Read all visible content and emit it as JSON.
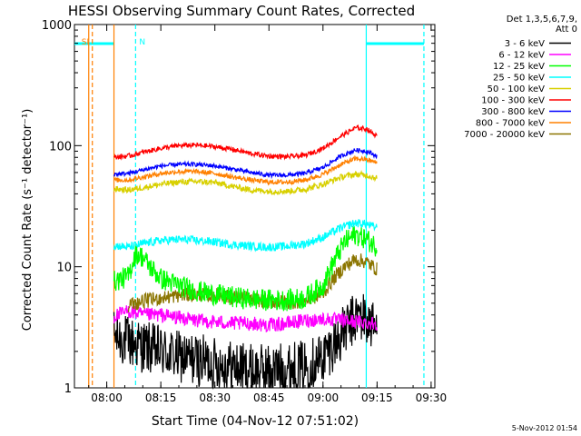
{
  "chart_data": {
    "type": "line",
    "title": "HESSI Observing Summary Count Rates, Corrected",
    "xlabel": "Start Time (04-Nov-12 07:51:02)",
    "ylabel": "Corrected Count Rate (s⁻¹ detector⁻¹)",
    "y_scale": "log",
    "ylim": [
      1,
      1000
    ],
    "xlim": [
      "07:51:02",
      "09:31:02"
    ],
    "x_ticks": [
      "08:00",
      "08:15",
      "08:30",
      "08:45",
      "09:00",
      "09:15",
      "09:30"
    ],
    "y_ticks": [
      {
        "value": 1,
        "label": "1"
      },
      {
        "value": 10,
        "label": "10"
      },
      {
        "value": 100,
        "label": "100"
      },
      {
        "value": 1000,
        "label": "1000"
      }
    ],
    "legend_header": [
      "Det 1,3,5,6,7,9,",
      "Att 0"
    ],
    "legend_position": "right",
    "footer_date": "5-Nov-2012 01:54",
    "data_start": "08:02",
    "data_end": "09:15",
    "series": [
      {
        "name": "3 - 6 keV",
        "color": "#000000",
        "points": [
          [
            "08:02",
            2.7
          ],
          [
            "08:06",
            2.4
          ],
          [
            "08:10",
            2.2
          ],
          [
            "08:15",
            2.0
          ],
          [
            "08:20",
            1.8
          ],
          [
            "08:25",
            1.7
          ],
          [
            "08:30",
            1.6
          ],
          [
            "08:35",
            1.5
          ],
          [
            "08:40",
            1.4
          ],
          [
            "08:45",
            1.4
          ],
          [
            "08:50",
            1.45
          ],
          [
            "08:55",
            1.5
          ],
          [
            "09:00",
            1.8
          ],
          [
            "09:05",
            2.7
          ],
          [
            "09:08",
            3.5
          ],
          [
            "09:10",
            4.0
          ],
          [
            "09:12",
            3.6
          ],
          [
            "09:15",
            3.0
          ]
        ]
      },
      {
        "name": "6 - 12 keV",
        "color": "#ff00ff",
        "points": [
          [
            "08:02",
            3.9
          ],
          [
            "08:06",
            4.3
          ],
          [
            "08:10",
            4.0
          ],
          [
            "08:15",
            4.0
          ],
          [
            "08:20",
            3.8
          ],
          [
            "08:25",
            3.6
          ],
          [
            "08:30",
            3.5
          ],
          [
            "08:35",
            3.4
          ],
          [
            "08:40",
            3.4
          ],
          [
            "08:45",
            3.3
          ],
          [
            "08:50",
            3.4
          ],
          [
            "08:55",
            3.6
          ],
          [
            "09:00",
            3.7
          ],
          [
            "09:05",
            3.6
          ],
          [
            "09:10",
            3.5
          ],
          [
            "09:15",
            3.4
          ]
        ]
      },
      {
        "name": "12 - 25 keV",
        "color": "#00ff00",
        "points": [
          [
            "08:02",
            7.6
          ],
          [
            "08:06",
            8.3
          ],
          [
            "08:08",
            13.0
          ],
          [
            "08:10",
            12.0
          ],
          [
            "08:12",
            10.0
          ],
          [
            "08:15",
            8.0
          ],
          [
            "08:20",
            7.0
          ],
          [
            "08:25",
            6.3
          ],
          [
            "08:30",
            5.9
          ],
          [
            "08:35",
            5.6
          ],
          [
            "08:40",
            5.4
          ],
          [
            "08:45",
            5.3
          ],
          [
            "08:50",
            5.3
          ],
          [
            "08:55",
            5.5
          ],
          [
            "09:00",
            7.0
          ],
          [
            "09:03",
            11.0
          ],
          [
            "09:06",
            16.0
          ],
          [
            "09:09",
            18.5
          ],
          [
            "09:12",
            17.0
          ],
          [
            "09:15",
            14.5
          ]
        ]
      },
      {
        "name": "25 - 50 keV",
        "color": "#00ffff",
        "points": [
          [
            "08:02",
            15.0
          ],
          [
            "08:06",
            14.5
          ],
          [
            "08:10",
            15.5
          ],
          [
            "08:15",
            16.5
          ],
          [
            "08:20",
            16.8
          ],
          [
            "08:25",
            16.5
          ],
          [
            "08:30",
            16.0
          ],
          [
            "08:35",
            15.2
          ],
          [
            "08:40",
            14.8
          ],
          [
            "08:45",
            14.5
          ],
          [
            "08:50",
            14.8
          ],
          [
            "08:55",
            15.5
          ],
          [
            "09:00",
            17.5
          ],
          [
            "09:05",
            21.0
          ],
          [
            "09:09",
            23.0
          ],
          [
            "09:12",
            22.5
          ],
          [
            "09:15",
            21.0
          ]
        ]
      },
      {
        "name": "50 - 100 keV",
        "color": "#d8d000",
        "points": [
          [
            "08:02",
            44.0
          ],
          [
            "08:06",
            43.0
          ],
          [
            "08:10",
            45.0
          ],
          [
            "08:15",
            48.0
          ],
          [
            "08:20",
            50.0
          ],
          [
            "08:25",
            50.5
          ],
          [
            "08:30",
            49.5
          ],
          [
            "08:35",
            46.0
          ],
          [
            "08:40",
            43.0
          ],
          [
            "08:45",
            42.0
          ],
          [
            "08:50",
            42.0
          ],
          [
            "08:55",
            43.5
          ],
          [
            "09:00",
            48.0
          ],
          [
            "09:05",
            55.0
          ],
          [
            "09:09",
            58.0
          ],
          [
            "09:12",
            57.0
          ],
          [
            "09:15",
            54.0
          ]
        ]
      },
      {
        "name": "100 - 300 keV",
        "color": "#ff0000",
        "points": [
          [
            "08:02",
            80.0
          ],
          [
            "08:06",
            82.0
          ],
          [
            "08:10",
            88.0
          ],
          [
            "08:15",
            95.0
          ],
          [
            "08:20",
            100.0
          ],
          [
            "08:25",
            101.0
          ],
          [
            "08:30",
            98.0
          ],
          [
            "08:35",
            93.0
          ],
          [
            "08:40",
            86.0
          ],
          [
            "08:45",
            82.0
          ],
          [
            "08:50",
            81.0
          ],
          [
            "08:55",
            83.0
          ],
          [
            "09:00",
            95.0
          ],
          [
            "09:05",
            120.0
          ],
          [
            "09:09",
            140.0
          ],
          [
            "09:12",
            138.0
          ],
          [
            "09:15",
            120.0
          ]
        ]
      },
      {
        "name": "300 - 800 keV",
        "color": "#0000ff",
        "points": [
          [
            "08:02",
            58.0
          ],
          [
            "08:06",
            59.0
          ],
          [
            "08:10",
            63.0
          ],
          [
            "08:15",
            68.0
          ],
          [
            "08:20",
            70.0
          ],
          [
            "08:25",
            70.0
          ],
          [
            "08:30",
            68.0
          ],
          [
            "08:35",
            64.0
          ],
          [
            "08:40",
            60.0
          ],
          [
            "08:45",
            57.0
          ],
          [
            "08:50",
            57.0
          ],
          [
            "08:55",
            59.0
          ],
          [
            "09:00",
            66.0
          ],
          [
            "09:05",
            82.0
          ],
          [
            "09:09",
            92.0
          ],
          [
            "09:12",
            90.0
          ],
          [
            "09:15",
            82.0
          ]
        ]
      },
      {
        "name": "800 - 7000 keV",
        "color": "#ff8000",
        "points": [
          [
            "08:02",
            52.0
          ],
          [
            "08:06",
            52.0
          ],
          [
            "08:10",
            55.0
          ],
          [
            "08:15",
            59.0
          ],
          [
            "08:20",
            61.0
          ],
          [
            "08:25",
            61.0
          ],
          [
            "08:30",
            59.0
          ],
          [
            "08:35",
            55.0
          ],
          [
            "08:40",
            52.0
          ],
          [
            "08:45",
            50.0
          ],
          [
            "08:50",
            50.0
          ],
          [
            "08:55",
            52.0
          ],
          [
            "09:00",
            58.0
          ],
          [
            "09:05",
            70.0
          ],
          [
            "09:09",
            78.0
          ],
          [
            "09:12",
            77.0
          ],
          [
            "09:15",
            72.0
          ]
        ]
      },
      {
        "name": "7000 - 20000 keV",
        "color": "#8b7500",
        "points": [
          [
            "08:06",
            4.8
          ],
          [
            "08:10",
            5.2
          ],
          [
            "08:15",
            5.5
          ],
          [
            "08:20",
            5.8
          ],
          [
            "08:25",
            5.9
          ],
          [
            "08:30",
            5.8
          ],
          [
            "08:35",
            5.6
          ],
          [
            "08:40",
            5.4
          ],
          [
            "08:45",
            5.2
          ],
          [
            "08:50",
            5.1
          ],
          [
            "08:55",
            5.2
          ],
          [
            "09:00",
            6.0
          ],
          [
            "09:03",
            8.0
          ],
          [
            "09:06",
            10.0
          ],
          [
            "09:09",
            11.5
          ],
          [
            "09:12",
            11.0
          ],
          [
            "09:15",
            9.5
          ]
        ]
      }
    ],
    "overlays": {
      "flag_bars": [
        {
          "color": "#00ffff",
          "start": "07:51:02",
          "end": "08:02"
        },
        {
          "color": "#00ffff",
          "start": "09:12",
          "end": "09:28"
        }
      ],
      "vertical_lines": [
        {
          "color": "#ff8000",
          "time": "07:55",
          "style": "solid"
        },
        {
          "color": "#ff8000",
          "time": "07:56",
          "style": "dashed"
        },
        {
          "color": "#ff8000",
          "time": "08:02",
          "style": "solid"
        },
        {
          "color": "#00ffff",
          "time": "08:08",
          "style": "dashed"
        },
        {
          "color": "#00ffff",
          "time": "09:12",
          "style": "solid"
        },
        {
          "color": "#00ffff",
          "time": "09:28",
          "style": "dashed"
        }
      ],
      "markers": [
        {
          "text": "SI",
          "color": "#ff8000",
          "time": "07:53"
        },
        {
          "text": "N",
          "color": "#00ffff",
          "time": "08:09"
        }
      ]
    }
  }
}
